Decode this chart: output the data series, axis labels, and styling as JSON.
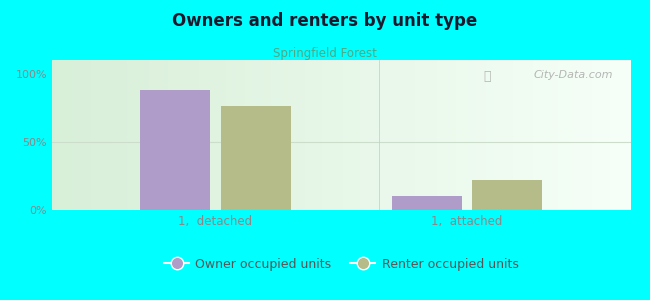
{
  "title": "Owners and renters by unit type",
  "subtitle": "Springfield Forest",
  "categories": [
    "1,  detached",
    "1,  attached"
  ],
  "owner_values": [
    88,
    10
  ],
  "renter_values": [
    76,
    22
  ],
  "owner_color": "#b09cc8",
  "renter_color": "#b5bc8a",
  "background_color": "#00ffff",
  "yticks": [
    0,
    50,
    100
  ],
  "ytick_labels": [
    "0%",
    "50%",
    "100%"
  ],
  "ylim": [
    0,
    110
  ],
  "bar_width": 0.28,
  "legend_owner": "Owner occupied units",
  "legend_renter": "Renter occupied units",
  "watermark": "City-Data.com",
  "subtitle_color": "#4aaa88",
  "tick_color": "#888888",
  "title_color": "#1a1a2e"
}
